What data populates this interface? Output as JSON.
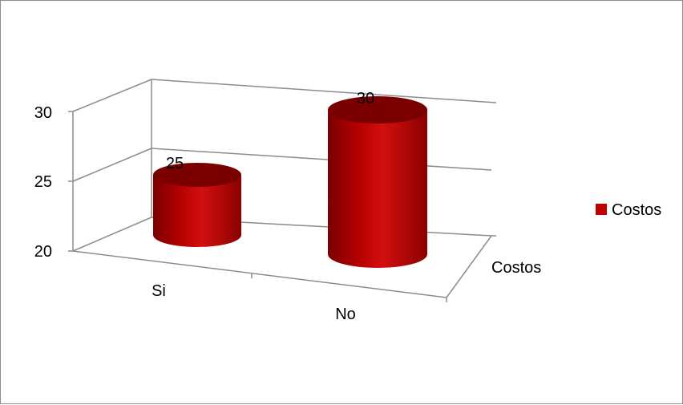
{
  "chart_data": {
    "type": "bar",
    "style": "3d-cylinder",
    "categories": [
      "Si",
      "No"
    ],
    "depth_category": "Costos",
    "series": [
      {
        "name": "Costos",
        "values": [
          25,
          30
        ]
      }
    ],
    "y_ticks": [
      "20",
      "25",
      "30"
    ],
    "ylim": [
      20,
      30
    ],
    "data_labels": [
      "25",
      "30"
    ],
    "legend": {
      "position": "right",
      "label": "Costos"
    },
    "grid": true,
    "colors": {
      "bar": "#c00000",
      "bar_dark": "#7a0000",
      "bar_light": "#e01a1a",
      "grid": "#8c8c8c"
    }
  }
}
